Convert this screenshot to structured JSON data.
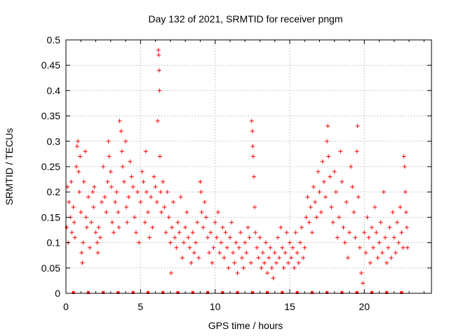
{
  "chart_data": {
    "type": "scatter",
    "title": "Day 132 of 2021, SRMTID for receiver pngm",
    "xlabel": "GPS time / hours",
    "ylabel": "SRMTID / TECUs",
    "xlim": [
      0,
      24.5
    ],
    "ylim": [
      0,
      0.5
    ],
    "x_ticks": [
      0,
      5,
      10,
      15,
      20
    ],
    "x_tick_labels": [
      "0",
      "5",
      "10",
      "15",
      "20"
    ],
    "y_ticks": [
      0,
      0.05,
      0.1,
      0.15,
      0.2,
      0.25,
      0.3,
      0.35,
      0.4,
      0.45,
      0.5
    ],
    "y_tick_labels": [
      "0",
      "0.05",
      "0.1",
      "0.15",
      "0.2",
      "0.25",
      "0.3",
      "0.35",
      "0.4",
      "0.45",
      "0.5"
    ],
    "grid": true,
    "marker": "plus",
    "color": "#ff0000",
    "series": [
      {
        "name": "SRMTID",
        "points": [
          [
            0.05,
            0.13
          ],
          [
            0.1,
            0.21
          ],
          [
            0.15,
            0.1
          ],
          [
            0.2,
            0.18
          ],
          [
            0.3,
            0.15
          ],
          [
            0.35,
            0.22
          ],
          [
            0.4,
            0.12
          ],
          [
            0.5,
            0.17
          ],
          [
            0.55,
            0.14
          ],
          [
            0.6,
            0.11
          ],
          [
            0.7,
            0.25
          ],
          [
            0.75,
            0.29
          ],
          [
            0.8,
            0.3
          ],
          [
            0.85,
            0.24
          ],
          [
            0.9,
            0.2
          ],
          [
            0.95,
            0.27
          ],
          [
            1.0,
            0.16
          ],
          [
            1.05,
            0.08
          ],
          [
            1.1,
            0.06
          ],
          [
            1.15,
            0.1
          ],
          [
            1.2,
            0.22
          ],
          [
            1.3,
            0.28
          ],
          [
            1.35,
            0.15
          ],
          [
            1.4,
            0.13
          ],
          [
            1.5,
            0.19
          ],
          [
            1.6,
            0.09
          ],
          [
            1.7,
            0.14
          ],
          [
            1.8,
            0.2
          ],
          [
            1.85,
            0.17
          ],
          [
            1.9,
            0.21
          ],
          [
            2.0,
            0.12
          ],
          [
            2.1,
            0.1
          ],
          [
            2.15,
            0.08
          ],
          [
            2.2,
            0.13
          ],
          [
            2.3,
            0.11
          ],
          [
            2.4,
            0.18
          ],
          [
            2.5,
            0.25
          ],
          [
            2.6,
            0.19
          ],
          [
            2.7,
            0.16
          ],
          [
            2.8,
            0.22
          ],
          [
            2.85,
            0.3
          ],
          [
            2.9,
            0.27
          ],
          [
            3.0,
            0.24
          ],
          [
            3.05,
            0.21
          ],
          [
            3.1,
            0.14
          ],
          [
            3.2,
            0.12
          ],
          [
            3.3,
            0.18
          ],
          [
            3.4,
            0.2
          ],
          [
            3.5,
            0.16
          ],
          [
            3.55,
            0.13
          ],
          [
            3.6,
            0.34
          ],
          [
            3.7,
            0.32
          ],
          [
            3.75,
            0.28
          ],
          [
            3.8,
            0.25
          ],
          [
            3.9,
            0.22
          ],
          [
            4.0,
            0.3
          ],
          [
            4.05,
            0.17
          ],
          [
            4.1,
            0.14
          ],
          [
            4.2,
            0.19
          ],
          [
            4.3,
            0.26
          ],
          [
            4.4,
            0.23
          ],
          [
            4.5,
            0.21
          ],
          [
            4.6,
            0.15
          ],
          [
            4.7,
            0.12
          ],
          [
            4.8,
            0.2
          ],
          [
            4.9,
            0.1
          ],
          [
            5.0,
            0.18
          ],
          [
            5.1,
            0.24
          ],
          [
            5.2,
            0.22
          ],
          [
            5.3,
            0.14
          ],
          [
            5.35,
            0.28
          ],
          [
            5.4,
            0.2
          ],
          [
            5.5,
            0.16
          ],
          [
            5.6,
            0.11
          ],
          [
            5.7,
            0.19
          ],
          [
            5.8,
            0.13
          ],
          [
            5.9,
            0.23
          ],
          [
            6.0,
            0.21
          ],
          [
            6.1,
            0.18
          ],
          [
            6.15,
            0.34
          ],
          [
            6.2,
            0.48
          ],
          [
            6.22,
            0.47
          ],
          [
            6.25,
            0.44
          ],
          [
            6.28,
            0.4
          ],
          [
            6.3,
            0.27
          ],
          [
            6.35,
            0.2
          ],
          [
            6.4,
            0.16
          ],
          [
            6.5,
            0.22
          ],
          [
            6.6,
            0.17
          ],
          [
            6.7,
            0.12
          ],
          [
            6.8,
            0.2
          ],
          [
            6.9,
            0.15
          ],
          [
            7.0,
            0.1
          ],
          [
            7.05,
            0.04
          ],
          [
            7.1,
            0.13
          ],
          [
            7.2,
            0.18
          ],
          [
            7.3,
            0.11
          ],
          [
            7.4,
            0.09
          ],
          [
            7.5,
            0.14
          ],
          [
            7.6,
            0.12
          ],
          [
            7.7,
            0.19
          ],
          [
            7.8,
            0.07
          ],
          [
            7.9,
            0.1
          ],
          [
            8.0,
            0.13
          ],
          [
            8.1,
            0.16
          ],
          [
            8.2,
            0.11
          ],
          [
            8.3,
            0.09
          ],
          [
            8.4,
            0.06
          ],
          [
            8.5,
            0.12
          ],
          [
            8.6,
            0.08
          ],
          [
            8.7,
            0.1
          ],
          [
            8.8,
            0.14
          ],
          [
            8.9,
            0.07
          ],
          [
            9.0,
            0.22
          ],
          [
            9.05,
            0.2
          ],
          [
            9.1,
            0.16
          ],
          [
            9.2,
            0.13
          ],
          [
            9.3,
            0.18
          ],
          [
            9.4,
            0.15
          ],
          [
            9.5,
            0.11
          ],
          [
            9.6,
            0.08
          ],
          [
            9.7,
            0.12
          ],
          [
            9.8,
            0.06
          ],
          [
            9.9,
            0.09
          ],
          [
            10.0,
            0.14
          ],
          [
            10.1,
            0.11
          ],
          [
            10.2,
            0.16
          ],
          [
            10.3,
            0.08
          ],
          [
            10.4,
            0.1
          ],
          [
            10.5,
            0.13
          ],
          [
            10.6,
            0.07
          ],
          [
            10.7,
            0.12
          ],
          [
            10.8,
            0.09
          ],
          [
            10.9,
            0.05
          ],
          [
            11.0,
            0.11
          ],
          [
            11.1,
            0.14
          ],
          [
            11.2,
            0.08
          ],
          [
            11.3,
            0.06
          ],
          [
            11.4,
            0.1
          ],
          [
            11.5,
            0.04
          ],
          [
            11.6,
            0.09
          ],
          [
            11.7,
            0.12
          ],
          [
            11.8,
            0.07
          ],
          [
            11.9,
            0.05
          ],
          [
            12.0,
            0.1
          ],
          [
            12.1,
            0.08
          ],
          [
            12.2,
            0.13
          ],
          [
            12.3,
            0.11
          ],
          [
            12.4,
            0.06
          ],
          [
            12.45,
            0.34
          ],
          [
            12.5,
            0.32
          ],
          [
            12.52,
            0.29
          ],
          [
            12.55,
            0.27
          ],
          [
            12.6,
            0.23
          ],
          [
            12.65,
            0.17
          ],
          [
            12.7,
            0.12
          ],
          [
            12.8,
            0.09
          ],
          [
            12.9,
            0.07
          ],
          [
            13.0,
            0.11
          ],
          [
            13.1,
            0.05
          ],
          [
            13.2,
            0.08
          ],
          [
            13.3,
            0.06
          ],
          [
            13.4,
            0.1
          ],
          [
            13.5,
            0.04
          ],
          [
            13.6,
            0.07
          ],
          [
            13.7,
            0.09
          ],
          [
            13.8,
            0.05
          ],
          [
            13.9,
            0.03
          ],
          [
            14.0,
            0.08
          ],
          [
            14.1,
            0.06
          ],
          [
            14.2,
            0.11
          ],
          [
            14.3,
            0.07
          ],
          [
            14.4,
            0.13
          ],
          [
            14.5,
            0.09
          ],
          [
            14.6,
            0.05
          ],
          [
            14.7,
            0.08
          ],
          [
            14.8,
            0.12
          ],
          [
            14.9,
            0.06
          ],
          [
            15.0,
            0.1
          ],
          [
            15.1,
            0.07
          ],
          [
            15.2,
            0.09
          ],
          [
            15.3,
            0.05
          ],
          [
            15.4,
            0.12
          ],
          [
            15.5,
            0.08
          ],
          [
            15.6,
            0.06
          ],
          [
            15.7,
            0.1
          ],
          [
            15.8,
            0.13
          ],
          [
            15.9,
            0.07
          ],
          [
            16.0,
            0.09
          ],
          [
            16.1,
            0.15
          ],
          [
            16.2,
            0.19
          ],
          [
            16.3,
            0.14
          ],
          [
            16.4,
            0.17
          ],
          [
            16.5,
            0.12
          ],
          [
            16.6,
            0.21
          ],
          [
            16.7,
            0.18
          ],
          [
            16.8,
            0.15
          ],
          [
            16.9,
            0.24
          ],
          [
            17.0,
            0.2
          ],
          [
            17.1,
            0.16
          ],
          [
            17.2,
            0.26
          ],
          [
            17.3,
            0.22
          ],
          [
            17.4,
            0.19
          ],
          [
            17.5,
            0.3
          ],
          [
            17.55,
            0.33
          ],
          [
            17.6,
            0.27
          ],
          [
            17.7,
            0.23
          ],
          [
            17.8,
            0.17
          ],
          [
            17.9,
            0.14
          ],
          [
            18.0,
            0.24
          ],
          [
            18.1,
            0.2
          ],
          [
            18.2,
            0.11
          ],
          [
            18.3,
            0.15
          ],
          [
            18.4,
            0.28
          ],
          [
            18.5,
            0.22
          ],
          [
            18.6,
            0.13
          ],
          [
            18.7,
            0.1
          ],
          [
            18.8,
            0.18
          ],
          [
            18.9,
            0.07
          ],
          [
            19.0,
            0.12
          ],
          [
            19.1,
            0.25
          ],
          [
            19.2,
            0.21
          ],
          [
            19.3,
            0.16
          ],
          [
            19.4,
            0.11
          ],
          [
            19.5,
            0.28
          ],
          [
            19.55,
            0.33
          ],
          [
            19.6,
            0.19
          ],
          [
            19.7,
            0.09
          ],
          [
            19.8,
            0.04
          ],
          [
            19.9,
            0.02
          ],
          [
            20.0,
            0.12
          ],
          [
            20.1,
            0.08
          ],
          [
            20.2,
            0.15
          ],
          [
            20.3,
            0.11
          ],
          [
            20.4,
            0.06
          ],
          [
            20.5,
            0.13
          ],
          [
            20.6,
            0.09
          ],
          [
            20.7,
            0.17
          ],
          [
            20.8,
            0.12
          ],
          [
            20.9,
            0.07
          ],
          [
            21.0,
            0.1
          ],
          [
            21.1,
            0.14
          ],
          [
            21.2,
            0.08
          ],
          [
            21.3,
            0.2
          ],
          [
            21.4,
            0.11
          ],
          [
            21.5,
            0.06
          ],
          [
            21.6,
            0.09
          ],
          [
            21.7,
            0.13
          ],
          [
            21.8,
            0.07
          ],
          [
            21.9,
            0.16
          ],
          [
            22.0,
            0.11
          ],
          [
            22.1,
            0.08
          ],
          [
            22.2,
            0.14
          ],
          [
            22.3,
            0.1
          ],
          [
            22.4,
            0.17
          ],
          [
            22.5,
            0.12
          ],
          [
            22.6,
            0.09
          ],
          [
            22.65,
            0.27
          ],
          [
            22.7,
            0.25
          ],
          [
            22.75,
            0.2
          ],
          [
            22.8,
            0.16
          ],
          [
            22.85,
            0.13
          ],
          [
            22.9,
            0.09
          ]
        ]
      }
    ],
    "bottom_markers_x": [
      0.5,
      1.5,
      2.5,
      3.5,
      4.5,
      5.5,
      6.5,
      7.5,
      8.5,
      9.5,
      10.5,
      11.5,
      12.5,
      13.5,
      14.5,
      15.5,
      16.5,
      17.5,
      18.5,
      19.5,
      20.5,
      21.5,
      22.5
    ]
  }
}
